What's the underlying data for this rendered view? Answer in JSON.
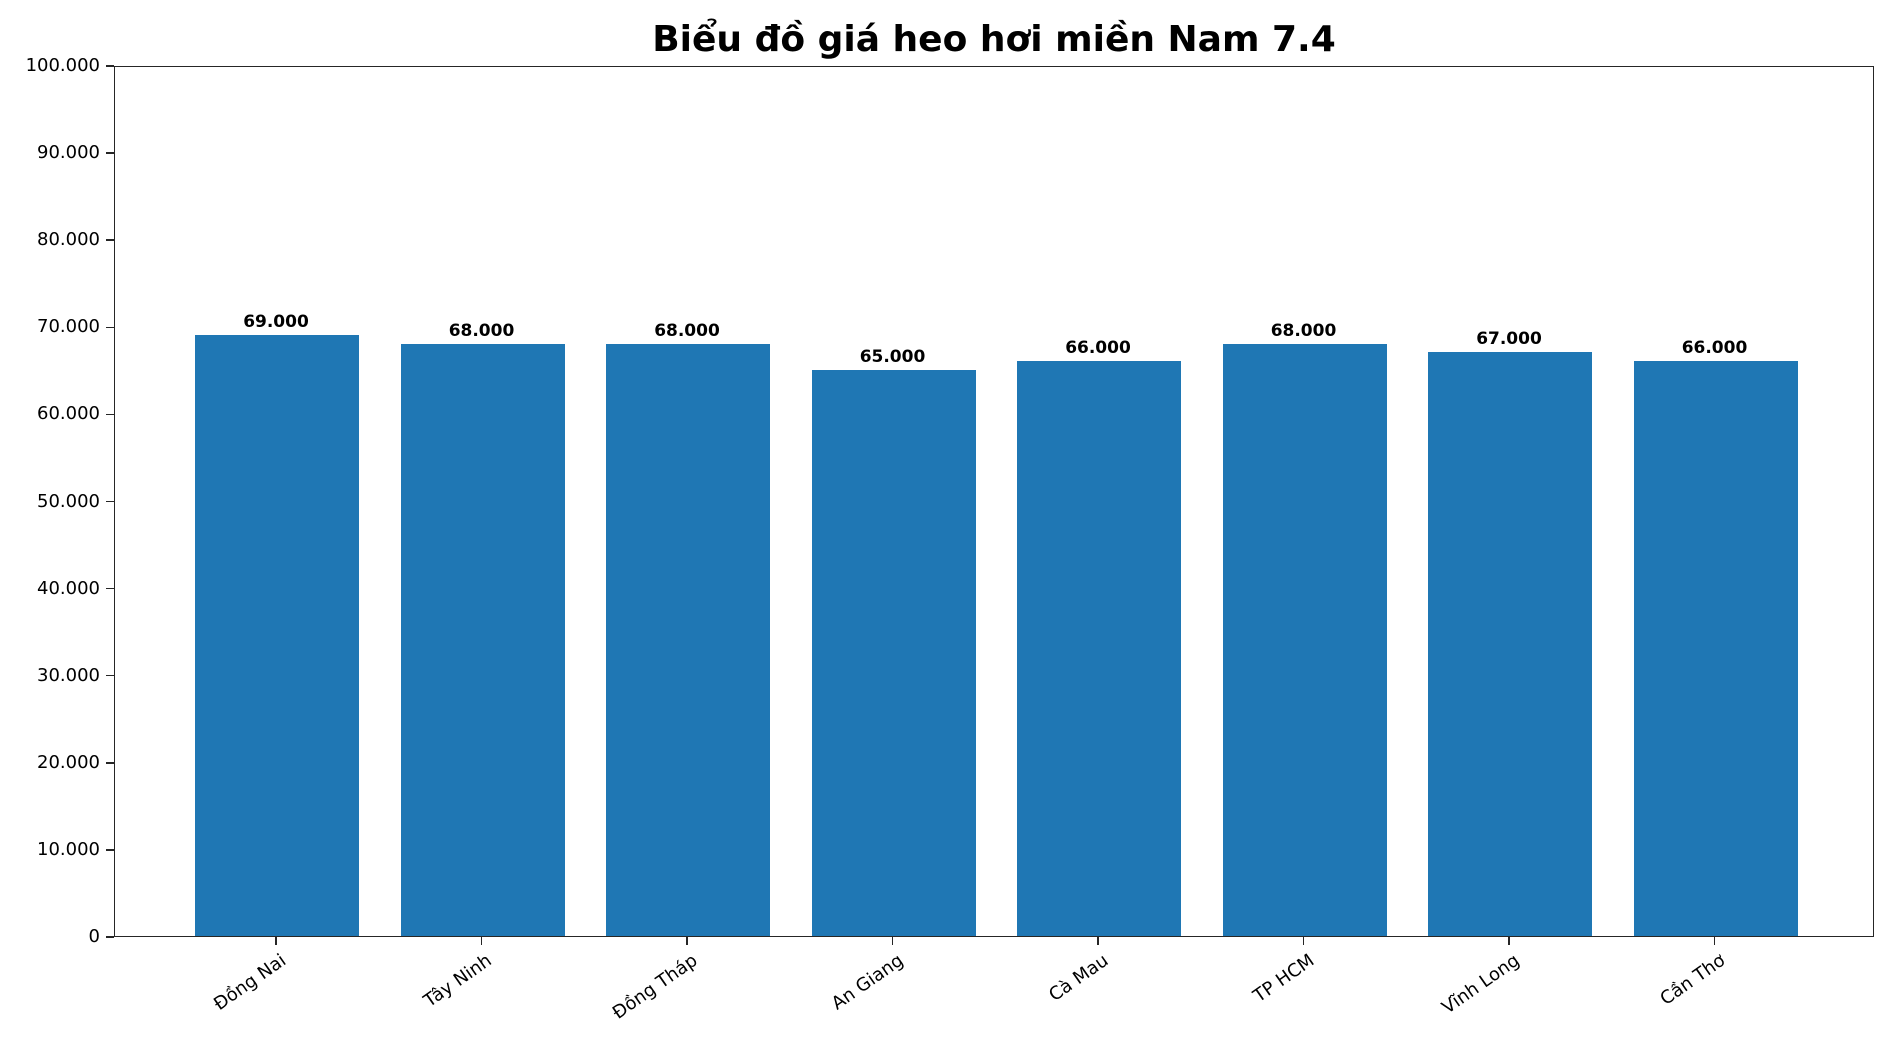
{
  "chart_data": {
    "type": "bar",
    "title": "Biểu đồ giá heo hơi miền Nam 7.4",
    "xlabel": "",
    "ylabel": "",
    "categories": [
      "Đồng Nai",
      "Tây Ninh",
      "Đồng Tháp",
      "An Giang",
      "Cà Mau",
      "TP HCM",
      "Vĩnh Long",
      "Cần Thơ"
    ],
    "values": [
      69000,
      68000,
      68000,
      65000,
      66000,
      68000,
      67000,
      66000
    ],
    "value_labels": [
      "69.000",
      "68.000",
      "68.000",
      "65.000",
      "66.000",
      "68.000",
      "67.000",
      "66.000"
    ],
    "ylim": [
      0,
      100000
    ],
    "yticks": [
      0,
      10000,
      20000,
      30000,
      40000,
      50000,
      60000,
      70000,
      80000,
      90000,
      100000
    ],
    "ytick_labels": [
      "0",
      "10.000",
      "20.000",
      "30.000",
      "40.000",
      "50.000",
      "60.000",
      "70.000",
      "80.000",
      "90.000",
      "100.000"
    ],
    "grid": false,
    "legend": null,
    "bar_color": "#1f77b4",
    "xtick_rotation": 35
  }
}
